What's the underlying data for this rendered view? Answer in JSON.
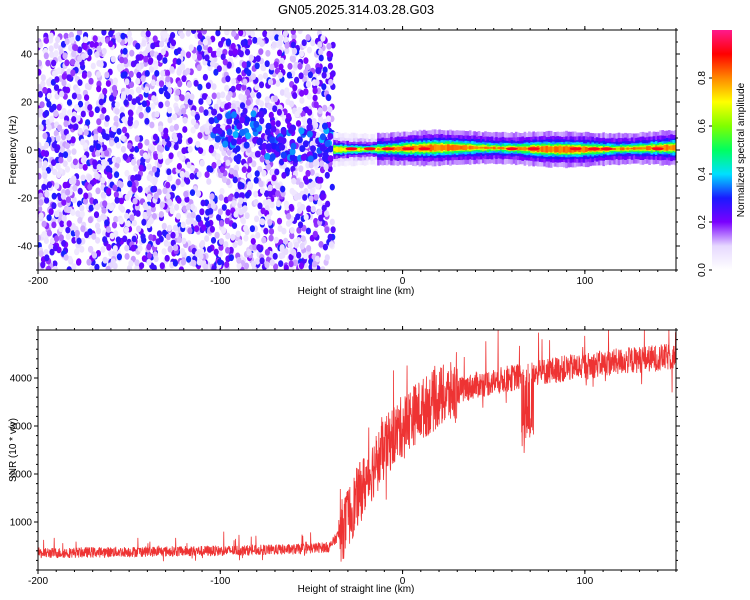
{
  "title": "GN05.2025.314.03.28.G03",
  "chart_data": [
    {
      "type": "heatmap",
      "name": "spectrogram",
      "xlabel": "Height of straight line (km)",
      "ylabel": "Frequency (Hz)",
      "xlim": [
        -200,
        150
      ],
      "ylim": [
        -50,
        50
      ],
      "xticks": [
        -200,
        -100,
        0,
        100
      ],
      "yticks": [
        -40,
        -20,
        0,
        20,
        40
      ],
      "grid": false,
      "noise_region_x": [
        -200,
        -38
      ],
      "signal_region_x": [
        -38,
        150
      ],
      "signal_center_hz": 0,
      "colorbar": {
        "label": "Normalized spectral amplitude",
        "range": [
          0.0,
          1.0
        ],
        "ticks": [
          0.0,
          0.2,
          0.4,
          0.6,
          0.8
        ],
        "colors": [
          "#ffffff",
          "#e6d8ff",
          "#7a00ff",
          "#1a1aff",
          "#00e0ff",
          "#00ff60",
          "#80ff00",
          "#ffff00",
          "#ff8800",
          "#ff0000",
          "#ff1a8c"
        ]
      }
    },
    {
      "type": "line",
      "name": "snr",
      "xlabel": "Height of straight line (km)",
      "ylabel": "SNR (10 * v/v)",
      "xlim": [
        -200,
        150
      ],
      "ylim": [
        0,
        5000
      ],
      "xticks": [
        -200,
        -100,
        0,
        100
      ],
      "yticks": [
        1000,
        2000,
        3000,
        4000
      ],
      "grid": false,
      "color": "#ee3333",
      "trend": [
        {
          "x": -200,
          "y": 350
        },
        {
          "x": -150,
          "y": 380
        },
        {
          "x": -100,
          "y": 400
        },
        {
          "x": -60,
          "y": 430
        },
        {
          "x": -40,
          "y": 480
        },
        {
          "x": -32,
          "y": 900
        },
        {
          "x": -25,
          "y": 1500
        },
        {
          "x": -15,
          "y": 2200
        },
        {
          "x": -5,
          "y": 2800
        },
        {
          "x": 5,
          "y": 3200
        },
        {
          "x": 20,
          "y": 3600
        },
        {
          "x": 40,
          "y": 3850
        },
        {
          "x": 60,
          "y": 4000
        },
        {
          "x": 80,
          "y": 4150
        },
        {
          "x": 100,
          "y": 4250
        },
        {
          "x": 120,
          "y": 4350
        },
        {
          "x": 150,
          "y": 4450
        }
      ]
    }
  ]
}
